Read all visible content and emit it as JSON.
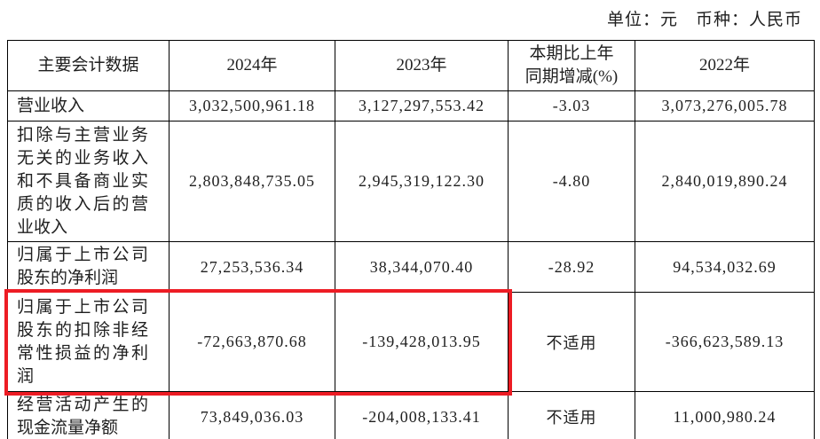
{
  "meta": {
    "unit_label": "单位：元　币种：人民币"
  },
  "table": {
    "headers": [
      "主要会计数据",
      "2024年",
      "2023年",
      "本期比上年同期增减(%)",
      "2022年"
    ],
    "rows": [
      {
        "label": "营业收入",
        "y2024": "3,032,500,961.18",
        "y2023": "3,127,297,553.42",
        "change": "-3.03",
        "y2022": "3,073,276,005.78",
        "highlighted": false
      },
      {
        "label": "扣除与主营业务无关的业务收入和不具备商业实质的收入后的营业收入",
        "y2024": "2,803,848,735.05",
        "y2023": "2,945,319,122.30",
        "change": "-4.80",
        "y2022": "2,840,019,890.24",
        "highlighted": false
      },
      {
        "label": "归属于上市公司股东的净利润",
        "y2024": "27,253,536.34",
        "y2023": "38,344,070.40",
        "change": "-28.92",
        "y2022": "94,534,032.69",
        "highlighted": false
      },
      {
        "label": "归属于上市公司股东的扣除非经常性损益的净利润",
        "y2024": "-72,663,870.68",
        "y2023": "-139,428,013.95",
        "change": "不适用",
        "y2022": "-366,623,589.13",
        "highlighted": true
      },
      {
        "label": "经营活动产生的现金流量净额",
        "y2024": "73,849,036.03",
        "y2023": "-204,008,133.41",
        "change": "不适用",
        "y2022": "11,000,980.24",
        "highlighted": false
      }
    ]
  },
  "highlight": {
    "color": "#ed1c24"
  }
}
